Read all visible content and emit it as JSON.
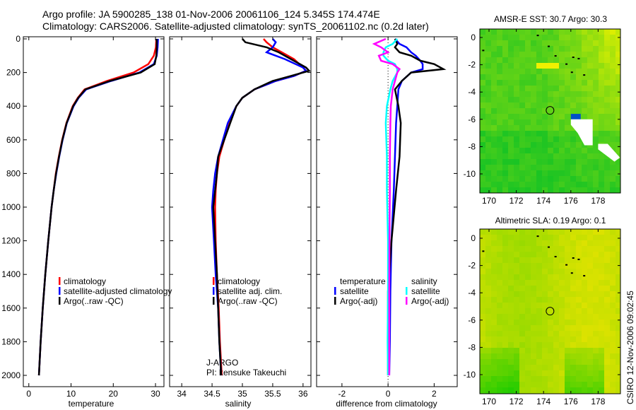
{
  "header": {
    "line1": "Argo profile: JA 5900285_138 01-Nov-2006 20061106_124 5.345S 174.474E",
    "line2": "Climatology: CARS2006. Satellite-adjusted climatology: synTS_20061102.nc (0.2d later)"
  },
  "footer_stamp": "CSIRO 12-Nov-2006 09:02:45",
  "float_info": {
    "program": "J-ARGO",
    "pi": "PI: kensuke Takeuchi"
  },
  "colors": {
    "climatology": "#ff0000",
    "satellite": "#0000ff",
    "argo": "#000000",
    "sal_satellite": "#00ffff",
    "sal_argo": "#ff00ff"
  },
  "chart_data": [
    {
      "type": "line",
      "xlabel": "temperature",
      "ylabel": "",
      "xlim": [
        -1.3,
        32
      ],
      "ylim": [
        2050,
        0
      ],
      "xticks": [
        0,
        10,
        20,
        30
      ],
      "yticks": [
        0,
        200,
        400,
        600,
        800,
        1000,
        1200,
        1400,
        1600,
        1800,
        2000
      ],
      "legend": [
        "climatology",
        "satellite-adjusted climatology",
        "Argo(..raw -QC)"
      ],
      "legend_position": "lower-right",
      "depth": [
        0,
        50,
        100,
        150,
        200,
        250,
        300,
        350,
        400,
        500,
        600,
        700,
        800,
        900,
        1000,
        1200,
        1400,
        1600,
        1800,
        2000
      ],
      "series": [
        {
          "name": "climatology",
          "values": [
            30.2,
            30.1,
            29.6,
            28.3,
            24.8,
            18.5,
            13.2,
            11.6,
            10.4,
            8.9,
            7.9,
            7.1,
            6.4,
            5.9,
            5.4,
            4.6,
            3.9,
            3.3,
            2.8,
            2.4
          ]
        },
        {
          "name": "satellite-adjusted climatology",
          "values": [
            30.6,
            30.5,
            30.3,
            29.6,
            26.2,
            19.5,
            13.6,
            11.8,
            10.6,
            9.0,
            8.0,
            7.2,
            6.5,
            5.9,
            5.4,
            4.6,
            3.9,
            3.3,
            2.8,
            2.4
          ]
        },
        {
          "name": "Argo(..raw -QC)",
          "values": [
            30.3,
            30.3,
            30.2,
            29.8,
            26.5,
            19.2,
            13.4,
            11.7,
            10.5,
            8.95,
            7.95,
            7.15,
            6.45,
            5.9,
            5.4,
            4.6,
            3.9,
            3.3,
            2.8,
            2.4
          ]
        }
      ]
    },
    {
      "type": "line",
      "xlabel": "salinity",
      "ylabel": "",
      "xlim": [
        33.8,
        36.13
      ],
      "ylim": [
        2050,
        0
      ],
      "xticks": [
        34,
        34.5,
        35,
        35.5,
        36
      ],
      "legend": [
        "climatology",
        "satellite adj. clim.",
        "Argo(..raw -QC)"
      ],
      "legend_position": "lower-right",
      "depth": [
        0,
        20,
        50,
        80,
        120,
        170,
        190,
        220,
        250,
        300,
        350,
        400,
        500,
        600,
        700,
        800,
        900,
        1000,
        1200,
        1400,
        1600,
        1800,
        2000
      ],
      "series": [
        {
          "name": "climatology",
          "values": [
            35.35,
            35.4,
            35.5,
            35.65,
            35.85,
            36.0,
            36.05,
            35.85,
            35.55,
            35.2,
            35.0,
            34.9,
            34.78,
            34.7,
            34.62,
            34.58,
            34.56,
            34.55,
            34.56,
            34.58,
            34.61,
            34.63,
            34.66
          ]
        },
        {
          "name": "satellite adj. clim.",
          "values": [
            35.5,
            35.55,
            35.5,
            35.4,
            35.7,
            36.0,
            36.05,
            35.85,
            35.55,
            35.2,
            35.0,
            34.9,
            34.76,
            34.68,
            34.6,
            34.55,
            34.52,
            34.5,
            34.53,
            34.56,
            34.6,
            34.62,
            34.65
          ]
        },
        {
          "name": "Argo(..raw -QC)",
          "values": [
            35.0,
            35.05,
            35.4,
            35.6,
            35.8,
            36.05,
            36.1,
            35.8,
            35.5,
            35.2,
            35.0,
            34.9,
            34.8,
            34.7,
            34.6,
            34.58,
            34.55,
            34.52,
            34.55,
            34.58,
            34.6,
            34.62,
            34.65
          ]
        }
      ]
    },
    {
      "type": "line",
      "xlabel": "difference from climatology",
      "ylabel": "",
      "xlim": [
        -3.1,
        3.0
      ],
      "ylim": [
        2050,
        0
      ],
      "xticks": [
        -2,
        0,
        2
      ],
      "legend_groups": [
        {
          "title": "temperature",
          "entries": [
            "satellite",
            "Argo(-adj)"
          ]
        },
        {
          "title": "salinity",
          "entries": [
            "satellite",
            "Argo(-adj)"
          ]
        }
      ],
      "legend_position": "lower-right",
      "depth": [
        0,
        30,
        50,
        80,
        100,
        130,
        150,
        180,
        200,
        250,
        300,
        400,
        500,
        700,
        900,
        1200,
        1500,
        1800,
        2000
      ],
      "series": [
        {
          "name": "temperature satellite",
          "values": [
            0.3,
            0.5,
            0.8,
            1.0,
            1.2,
            1.4,
            1.5,
            1.5,
            1.0,
            0.6,
            0.45,
            0.4,
            0.35,
            0.3,
            0.25,
            0.15,
            0.1,
            0.08,
            0.05
          ]
        },
        {
          "name": "temperature Argo(-adj)",
          "values": [
            0.3,
            0.4,
            0.3,
            0.5,
            1.0,
            1.4,
            2.0,
            2.4,
            1.0,
            0.6,
            0.3,
            0.45,
            0.55,
            0.5,
            0.35,
            0.15,
            0.0,
            0.0,
            0.0
          ]
        },
        {
          "name": "salinity satellite",
          "values": [
            0.4,
            0.2,
            -0.1,
            -0.2,
            -0.2,
            0.0,
            0.3,
            0.4,
            0.4,
            0.2,
            0.1,
            -0.05,
            -0.1,
            -0.05,
            -0.05,
            0.0,
            0.0,
            -0.02,
            0.0
          ]
        },
        {
          "name": "salinity Argo(-adj)",
          "values": [
            -0.1,
            -0.6,
            -0.3,
            0.0,
            -0.4,
            -0.3,
            0.2,
            0.5,
            0.4,
            0.3,
            0.2,
            0.12,
            0.1,
            0.08,
            0.08,
            0.06,
            0.05,
            0.05,
            0.05
          ]
        }
      ]
    },
    {
      "type": "heatmap",
      "title": "AMSR-E SST: 30.7 Argo: 30.3",
      "xlim": [
        169.33,
        179.64
      ],
      "ylim": [
        -11.4,
        0.62
      ],
      "xticks": [
        170,
        172,
        174,
        176,
        178
      ],
      "yticks": [
        0,
        -2,
        -4,
        -6,
        -8,
        -10
      ],
      "marker": {
        "lon": 174.474,
        "lat": -5.345
      }
    },
    {
      "type": "heatmap",
      "title": "Altimetric SLA: 0.19 Argo: 0.1",
      "xlim": [
        169.33,
        179.64
      ],
      "ylim": [
        -11.4,
        0.62
      ],
      "xticks": [
        170,
        172,
        174,
        176,
        178
      ],
      "yticks": [
        0,
        -2,
        -4,
        -6,
        -8,
        -10
      ],
      "marker": {
        "lon": 174.474,
        "lat": -5.345
      }
    }
  ]
}
